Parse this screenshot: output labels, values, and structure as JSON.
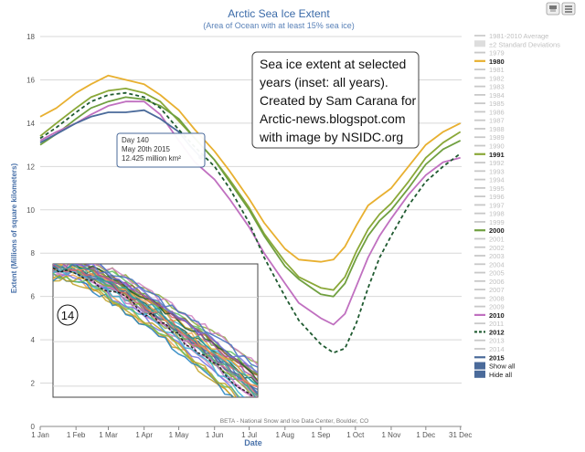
{
  "chart_data": {
    "type": "line",
    "title": "Arctic Sea Ice Extent",
    "subtitle": "(Area of Ocean with at least 15% sea ice)",
    "xlabel": "Date",
    "ylabel": "Extent (Millions of square kilometers)",
    "xlim": [
      1,
      366
    ],
    "ylim": [
      0,
      18
    ],
    "ytick_values": [
      0,
      2,
      4,
      6,
      8,
      10,
      12,
      14,
      16,
      18
    ],
    "ytick_labels": [
      "0",
      "2",
      "4",
      "6",
      "8",
      "10",
      "12",
      "14",
      "16",
      "18"
    ],
    "xtick_days": [
      1,
      32,
      60,
      91,
      121,
      152,
      182,
      213,
      244,
      274,
      305,
      335,
      365
    ],
    "xtick_labels": [
      "1 Jan",
      "1 Feb",
      "1 Mar",
      "1 Apr",
      "1 May",
      "1 Jun",
      "1 Jul",
      "1 Aug",
      "1 Sep",
      "1 Oct",
      "1 Nov",
      "1 Dec",
      "31 Dec"
    ],
    "credit": "BETA - National Snow and Ice Data Center, Boulder, CO",
    "annotation": {
      "lines": [
        "Sea ice extent at selected",
        "years (inset: all years).",
        "Created by Sam Carana for",
        "Arctic-news.blogspot.com",
        "with image by NSIDC.org"
      ]
    },
    "tooltip": {
      "lines": [
        "Day 140",
        "May 20th 2015",
        "12.425 million km²"
      ],
      "day": 140,
      "value": 12.425
    },
    "inset": {
      "label": "14",
      "xlim": [
        60,
        215
      ],
      "ylim": [
        1.5,
        7.5
      ],
      "gridlines": [
        2,
        4,
        6
      ]
    },
    "series": [
      {
        "name": "1980",
        "color": "#e8b030",
        "dashed": false,
        "x": [
          1,
          15,
          32,
          45,
          60,
          75,
          91,
          105,
          121,
          135,
          152,
          165,
          182,
          195,
          213,
          225,
          244,
          255,
          265,
          275,
          285,
          295,
          305,
          320,
          335,
          350,
          365
        ],
        "y": [
          14.3,
          14.7,
          15.4,
          15.8,
          16.2,
          16.0,
          15.8,
          15.3,
          14.6,
          13.7,
          12.7,
          11.8,
          10.5,
          9.4,
          8.2,
          7.7,
          7.6,
          7.7,
          8.3,
          9.3,
          10.2,
          10.6,
          11.0,
          12.0,
          13.0,
          13.6,
          14.0
        ]
      },
      {
        "name": "1991",
        "color": "#8aa838",
        "dashed": false,
        "x": [
          1,
          15,
          32,
          45,
          60,
          75,
          91,
          105,
          121,
          135,
          152,
          165,
          182,
          195,
          213,
          225,
          244,
          255,
          265,
          275,
          285,
          295,
          305,
          320,
          335,
          350,
          365
        ],
        "y": [
          13.4,
          14.0,
          14.7,
          15.2,
          15.5,
          15.6,
          15.4,
          15.0,
          14.1,
          13.3,
          12.3,
          11.4,
          10.1,
          8.9,
          7.6,
          6.9,
          6.4,
          6.3,
          6.9,
          8.1,
          9.1,
          9.8,
          10.3,
          11.3,
          12.4,
          13.1,
          13.6
        ]
      },
      {
        "name": "2000",
        "color": "#70a040",
        "dashed": false,
        "x": [
          1,
          15,
          32,
          45,
          60,
          75,
          91,
          105,
          121,
          135,
          152,
          165,
          182,
          195,
          213,
          225,
          244,
          255,
          265,
          275,
          285,
          295,
          305,
          320,
          335,
          350,
          365
        ],
        "y": [
          13.0,
          13.5,
          14.2,
          14.7,
          15.0,
          15.2,
          15.1,
          14.8,
          14.2,
          13.3,
          12.3,
          11.3,
          10.0,
          8.8,
          7.4,
          6.8,
          6.1,
          6.0,
          6.6,
          7.8,
          8.8,
          9.5,
          10.0,
          11.0,
          12.1,
          12.8,
          13.2
        ]
      },
      {
        "name": "2010",
        "color": "#c070c0",
        "dashed": false,
        "x": [
          1,
          15,
          32,
          45,
          60,
          75,
          91,
          105,
          121,
          135,
          152,
          165,
          182,
          195,
          213,
          225,
          244,
          255,
          265,
          275,
          285,
          295,
          305,
          320,
          335,
          350,
          365
        ],
        "y": [
          13.2,
          13.6,
          14.0,
          14.4,
          14.8,
          15.0,
          15.0,
          14.4,
          13.2,
          12.2,
          11.4,
          10.5,
          9.2,
          8.0,
          6.6,
          5.7,
          5.0,
          4.7,
          5.2,
          6.5,
          7.8,
          8.8,
          9.6,
          10.7,
          11.6,
          12.2,
          12.4
        ]
      },
      {
        "name": "2012",
        "color": "#1f5a30",
        "dashed": true,
        "x": [
          1,
          15,
          32,
          45,
          60,
          75,
          91,
          105,
          121,
          135,
          152,
          165,
          182,
          195,
          213,
          225,
          244,
          255,
          265,
          275,
          285,
          295,
          305,
          320,
          335,
          350,
          365
        ],
        "y": [
          13.3,
          13.8,
          14.5,
          15.0,
          15.3,
          15.4,
          15.2,
          14.7,
          13.7,
          12.9,
          12.0,
          11.0,
          9.4,
          7.8,
          6.0,
          4.9,
          3.8,
          3.4,
          3.6,
          4.8,
          6.4,
          7.8,
          8.8,
          10.2,
          11.3,
          12.0,
          12.6
        ]
      },
      {
        "name": "2015",
        "color": "#4a6a9a",
        "dashed": false,
        "x": [
          1,
          15,
          32,
          45,
          60,
          75,
          91,
          105,
          121,
          130,
          140
        ],
        "y": [
          13.1,
          13.5,
          14.0,
          14.3,
          14.5,
          14.5,
          14.6,
          14.2,
          13.6,
          13.0,
          12.425
        ]
      }
    ],
    "legend": [
      {
        "label": "1981-2010 Average",
        "kind": "line-light"
      },
      {
        "label": "±2 Standard Deviations",
        "kind": "band"
      },
      {
        "label": "1979",
        "kind": "faded"
      },
      {
        "label": "1980",
        "kind": "active",
        "color": "#e8b030"
      },
      {
        "label": "1981",
        "kind": "faded"
      },
      {
        "label": "1982",
        "kind": "faded"
      },
      {
        "label": "1983",
        "kind": "faded"
      },
      {
        "label": "1984",
        "kind": "faded"
      },
      {
        "label": "1985",
        "kind": "faded"
      },
      {
        "label": "1986",
        "kind": "faded"
      },
      {
        "label": "1987",
        "kind": "faded"
      },
      {
        "label": "1988",
        "kind": "faded"
      },
      {
        "label": "1989",
        "kind": "faded"
      },
      {
        "label": "1990",
        "kind": "faded"
      },
      {
        "label": "1991",
        "kind": "active",
        "color": "#8aa838"
      },
      {
        "label": "1992",
        "kind": "faded"
      },
      {
        "label": "1993",
        "kind": "faded"
      },
      {
        "label": "1994",
        "kind": "faded"
      },
      {
        "label": "1995",
        "kind": "faded"
      },
      {
        "label": "1996",
        "kind": "faded"
      },
      {
        "label": "1997",
        "kind": "faded"
      },
      {
        "label": "1998",
        "kind": "faded"
      },
      {
        "label": "1999",
        "kind": "faded"
      },
      {
        "label": "2000",
        "kind": "active",
        "color": "#70a040"
      },
      {
        "label": "2001",
        "kind": "faded"
      },
      {
        "label": "2002",
        "kind": "faded"
      },
      {
        "label": "2003",
        "kind": "faded"
      },
      {
        "label": "2004",
        "kind": "faded"
      },
      {
        "label": "2005",
        "kind": "faded"
      },
      {
        "label": "2006",
        "kind": "faded"
      },
      {
        "label": "2007",
        "kind": "faded"
      },
      {
        "label": "2008",
        "kind": "faded"
      },
      {
        "label": "2009",
        "kind": "faded"
      },
      {
        "label": "2010",
        "kind": "active",
        "color": "#c070c0"
      },
      {
        "label": "2011",
        "kind": "faded"
      },
      {
        "label": "2012",
        "kind": "active-dashed",
        "color": "#1f5a30"
      },
      {
        "label": "2013",
        "kind": "faded"
      },
      {
        "label": "2014",
        "kind": "faded"
      },
      {
        "label": "2015",
        "kind": "active",
        "color": "#4a6a9a"
      }
    ],
    "buttons": [
      {
        "label": "Show all",
        "name": "show-all-button"
      },
      {
        "label": "Hide all",
        "name": "hide-all-button"
      }
    ],
    "colors": {
      "title": "#3a6aa8",
      "subtitle": "#5a82b8",
      "axis_label": "#4a72aa",
      "grid": "#d8d8d8",
      "faded": "#c8c8c8",
      "tooltip_border": "#4a6a9a",
      "icon_button": "#eeeeee"
    }
  }
}
